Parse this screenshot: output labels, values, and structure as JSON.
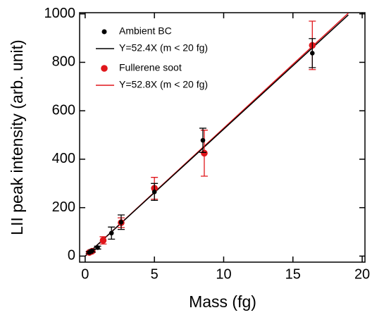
{
  "chart_data": {
    "type": "scatter",
    "x_label": "Mass (fg)",
    "y_label": "LII peak intensity (arb. unit)",
    "xlim": [
      -0.4,
      20.2
    ],
    "ylim": [
      -25,
      1005
    ],
    "xticks": [
      0,
      5,
      10,
      15,
      20
    ],
    "yticks": [
      0,
      200,
      400,
      600,
      800,
      1000
    ],
    "series": [
      {
        "name": "Ambient BC",
        "color": "#000000",
        "kind": "points",
        "x": [
          0.3,
          0.5,
          0.9,
          1.9,
          2.6,
          5.0,
          8.5,
          16.4
        ],
        "values": [
          15,
          22,
          35,
          95,
          140,
          265,
          478,
          838
        ],
        "errors": [
          4,
          5,
          6,
          25,
          30,
          35,
          50,
          60
        ]
      },
      {
        "name": "Y=52.4X (m < 20 fg)",
        "color": "#000000",
        "kind": "line",
        "x": [
          0,
          19
        ],
        "values": [
          0,
          995.6
        ]
      },
      {
        "name": "Fullerene soot",
        "color": "#e0161b",
        "kind": "points",
        "x": [
          0.3,
          0.5,
          1.3,
          2.6,
          5.0,
          8.6,
          16.4
        ],
        "values": [
          15,
          20,
          65,
          138,
          280,
          425,
          870
        ],
        "errors": [
          4,
          5,
          15,
          20,
          45,
          95,
          100
        ]
      },
      {
        "name": "Y=52.8X (m < 20 fg)",
        "color": "#e0161b",
        "kind": "line",
        "x": [
          0,
          19
        ],
        "values": [
          0,
          1003.2
        ]
      }
    ]
  }
}
